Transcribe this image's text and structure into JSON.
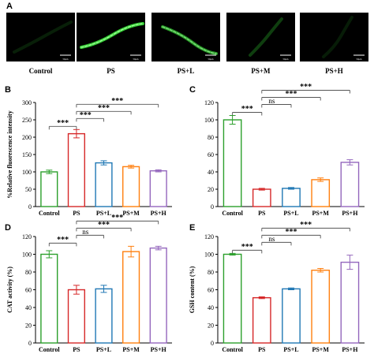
{
  "panel_A": {
    "letter": "A",
    "scale_bar_text": "50μm",
    "images": [
      {
        "label": "Control",
        "glow": 0.15
      },
      {
        "label": "PS",
        "glow": 1.0
      },
      {
        "label": "PS+L",
        "glow": 0.75
      },
      {
        "label": "PS+M",
        "glow": 0.3
      },
      {
        "label": "PS+H",
        "glow": 0.12
      }
    ]
  },
  "colors": {
    "series": [
      "#2ca02c",
      "#d62728",
      "#1f77b4",
      "#ff7f0e",
      "#9467bd"
    ],
    "micro_green": "#39e639"
  },
  "chart_data": [
    {
      "panel": "B",
      "type": "bar",
      "categories": [
        "Control",
        "PS",
        "PS+L",
        "PS+M",
        "PS+H"
      ],
      "values": [
        100,
        210,
        126,
        115,
        103
      ],
      "errors": [
        5,
        12,
        6,
        4,
        3
      ],
      "ylabel": "%Relative fluorescence intensity",
      "ylim": [
        0,
        300
      ],
      "yticks": [
        0,
        50,
        100,
        150,
        200,
        250,
        300
      ],
      "brackets": [
        {
          "from": 0,
          "to": 1,
          "label": "***",
          "level": 0
        },
        {
          "from": 1,
          "to": 2,
          "label": "***",
          "level": 0
        },
        {
          "from": 1,
          "to": 3,
          "label": "***",
          "level": 1
        },
        {
          "from": 1,
          "to": 4,
          "label": "***",
          "level": 2
        }
      ]
    },
    {
      "panel": "C",
      "type": "bar",
      "categories": [
        "Control",
        "PS",
        "PS+L",
        "PS+M",
        "PS+H"
      ],
      "values": [
        100,
        20,
        21,
        31,
        51
      ],
      "errors": [
        5,
        1,
        1,
        2,
        3
      ],
      "ylabel": "",
      "ylim": [
        0,
        120
      ],
      "yticks": [
        0,
        20,
        40,
        60,
        80,
        100,
        120
      ],
      "brackets": [
        {
          "from": 0,
          "to": 1,
          "label": "***",
          "level": 0
        },
        {
          "from": 1,
          "to": 2,
          "label": "ns",
          "level": 0
        },
        {
          "from": 1,
          "to": 3,
          "label": "***",
          "level": 1
        },
        {
          "from": 1,
          "to": 4,
          "label": "***",
          "level": 2
        }
      ]
    },
    {
      "panel": "D",
      "type": "bar",
      "categories": [
        "Control",
        "PS",
        "PS+L",
        "PS+M",
        "PS+H"
      ],
      "values": [
        100,
        60,
        61,
        103,
        107
      ],
      "errors": [
        4,
        5,
        4,
        6,
        2
      ],
      "ylabel": "CAT activity (%)",
      "ylim": [
        0,
        120
      ],
      "yticks": [
        0,
        20,
        40,
        60,
        80,
        100,
        120
      ],
      "brackets": [
        {
          "from": 0,
          "to": 1,
          "label": "***",
          "level": 0
        },
        {
          "from": 1,
          "to": 2,
          "label": "ns",
          "level": 0
        },
        {
          "from": 1,
          "to": 3,
          "label": "***",
          "level": 1
        },
        {
          "from": 1,
          "to": 4,
          "label": "***",
          "level": 2
        }
      ]
    },
    {
      "panel": "E",
      "type": "bar",
      "categories": [
        "Control",
        "PS",
        "PS+L",
        "PS+M",
        "PS+H"
      ],
      "values": [
        100,
        51,
        61,
        82,
        91
      ],
      "errors": [
        1,
        1,
        1,
        2,
        8
      ],
      "ylabel": "GSH content (%)",
      "ylim": [
        0,
        120
      ],
      "yticks": [
        0,
        20,
        40,
        60,
        80,
        100,
        120
      ],
      "brackets": [
        {
          "from": 0,
          "to": 1,
          "label": "***",
          "level": 0
        },
        {
          "from": 1,
          "to": 2,
          "label": "ns",
          "level": 0
        },
        {
          "from": 1,
          "to": 3,
          "label": "***",
          "level": 1
        },
        {
          "from": 1,
          "to": 4,
          "label": "***",
          "level": 2
        }
      ]
    }
  ]
}
